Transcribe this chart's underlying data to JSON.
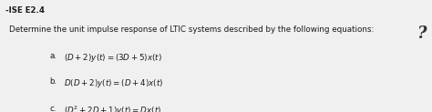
{
  "header": "-ISE E2.4",
  "main_text": "Determine the unit impulse response of LTIC systems described by the following equations:",
  "eq_a_label": "a.",
  "eq_a_text": "$(D + 2)y(t) = (3D + 5)x(t)$",
  "eq_b_label": "b.",
  "eq_b_text": "$D(D + 2)y(t) = (D + 4)x(t)$",
  "eq_c_label": "c.",
  "eq_c_text": "$(D^2 + 2D + 1)y(t) = Dx(t)$",
  "bg_color": "#f0f0f0",
  "header_bg": "#c8c8c8",
  "content_bg": "#ffffff",
  "text_color": "#1a1a1a",
  "header_color": "#1a1a1a",
  "figsize": [
    4.74,
    1.23
  ],
  "dpi": 100
}
